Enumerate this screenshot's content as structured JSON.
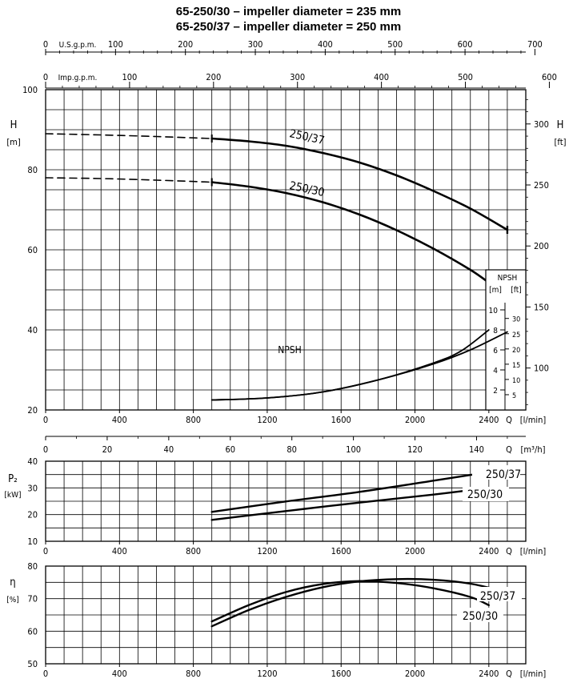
{
  "titles": {
    "line1": "65-250/30 – impeller diameter = 235 mm",
    "line2": "65-250/37 – impeller diameter = 250 mm"
  },
  "chart_data": [
    {
      "type": "line",
      "name": "head-curve",
      "ylabel": "H",
      "yunit": "[m]",
      "ylabel_right": "H",
      "yunit_right": "[ft]",
      "xlabel": "Q",
      "xunit": "[l/min]",
      "xlim": [
        0,
        2600
      ],
      "ylim": [
        20,
        100
      ],
      "xticks": [
        0,
        400,
        800,
        1200,
        1600,
        2000,
        2400
      ],
      "yticks": [
        20,
        40,
        60,
        80,
        100
      ],
      "ft_ticks": [
        100,
        150,
        200,
        250,
        300
      ],
      "usgpm_label": "U.S.g.p.m.",
      "usgpm_ticks": [
        0,
        100,
        200,
        300,
        400,
        500,
        600,
        700
      ],
      "impgpm_label": "Imp.g.p.m.",
      "impgpm_ticks": [
        0,
        100,
        200,
        300,
        400,
        500,
        600
      ],
      "m3h_label": "Q",
      "m3h_unit": "[m³/h]",
      "m3h_ticks": [
        0,
        20,
        40,
        60,
        80,
        100,
        120,
        140
      ],
      "grid": true,
      "series": [
        {
          "name": "250/37",
          "dashed": [
            [
              0,
              89
            ],
            [
              300,
              88.7
            ],
            [
              600,
              88.3
            ],
            [
              900,
              87.8
            ]
          ],
          "solid": [
            [
              900,
              87.8
            ],
            [
              1100,
              87.1
            ],
            [
              1300,
              86.0
            ],
            [
              1500,
              84.2
            ],
            [
              1700,
              81.8
            ],
            [
              1900,
              78.6
            ],
            [
              2100,
              74.7
            ],
            [
              2300,
              70.3
            ],
            [
              2500,
              65.0
            ]
          ],
          "label_at": [
            1290,
            86.5
          ]
        },
        {
          "name": "250/30",
          "dashed": [
            [
              0,
              78
            ],
            [
              300,
              77.8
            ],
            [
              600,
              77.4
            ],
            [
              900,
              76.9
            ]
          ],
          "solid": [
            [
              900,
              76.9
            ],
            [
              1100,
              75.8
            ],
            [
              1300,
              74.2
            ],
            [
              1500,
              71.9
            ],
            [
              1700,
              68.8
            ],
            [
              1900,
              64.9
            ],
            [
              2100,
              60.3
            ],
            [
              2300,
              55.0
            ],
            [
              2400,
              51.8
            ]
          ],
          "label_at": [
            1290,
            73.5
          ]
        }
      ]
    },
    {
      "type": "line",
      "name": "npsh-curve",
      "label": "NPSH",
      "box_title": "NPSH",
      "unit_m": "[m]",
      "unit_ft": "[ft]",
      "m_ticks": [
        2,
        4,
        6,
        8,
        10
      ],
      "ft_ticks": [
        5,
        10,
        15,
        20,
        25,
        30
      ],
      "series": [
        {
          "name": "250/37",
          "values": [
            [
              900,
              1.0
            ],
            [
              1200,
              1.2
            ],
            [
              1500,
              1.8
            ],
            [
              1800,
              3.0
            ],
            [
              2100,
              4.6
            ],
            [
              2300,
              6.0
            ],
            [
              2500,
              7.8
            ]
          ]
        },
        {
          "name": "250/30",
          "values": [
            [
              900,
              1.0
            ],
            [
              1200,
              1.2
            ],
            [
              1500,
              1.8
            ],
            [
              1800,
              3.0
            ],
            [
              2100,
              4.7
            ],
            [
              2250,
              5.9
            ],
            [
              2400,
              8.0
            ]
          ]
        }
      ]
    },
    {
      "type": "line",
      "name": "power-curve",
      "ylabel": "P₂",
      "yunit": "[kW]",
      "xlabel": "Q",
      "xunit": "[l/min]",
      "xlim": [
        0,
        2600
      ],
      "ylim": [
        10,
        40
      ],
      "yticks": [
        10,
        20,
        30,
        40
      ],
      "xticks": [
        0,
        400,
        800,
        1200,
        1600,
        2000,
        2400
      ],
      "series": [
        {
          "name": "250/37",
          "values": [
            [
              900,
              21
            ],
            [
              1300,
              24.9
            ],
            [
              1700,
              28.5
            ],
            [
              2100,
              32.7
            ],
            [
              2500,
              37
            ]
          ]
        },
        {
          "name": "250/30",
          "values": [
            [
              900,
              18
            ],
            [
              1300,
              21.3
            ],
            [
              1700,
              24.5
            ],
            [
              2100,
              27.5
            ],
            [
              2400,
              30
            ]
          ]
        }
      ]
    },
    {
      "type": "line",
      "name": "efficiency-curve",
      "ylabel": "η",
      "yunit": "[%]",
      "xlabel": "Q",
      "xunit": "[l/min]",
      "xlim": [
        0,
        2600
      ],
      "ylim": [
        50,
        80
      ],
      "yticks": [
        50,
        60,
        70,
        80
      ],
      "xticks": [
        0,
        400,
        800,
        1200,
        1600,
        2000,
        2400
      ],
      "series": [
        {
          "name": "250/37",
          "values": [
            [
              900,
              61.5
            ],
            [
              1100,
              66.5
            ],
            [
              1300,
              70.5
            ],
            [
              1500,
              73.5
            ],
            [
              1700,
              75.3
            ],
            [
              1900,
              76.0
            ],
            [
              2100,
              75.8
            ],
            [
              2300,
              74.6
            ],
            [
              2500,
              72.0
            ]
          ]
        },
        {
          "name": "250/30",
          "values": [
            [
              900,
              63
            ],
            [
              1100,
              68
            ],
            [
              1300,
              72
            ],
            [
              1500,
              74.5
            ],
            [
              1700,
              75.4
            ],
            [
              1900,
              74.8
            ],
            [
              2100,
              73.2
            ],
            [
              2300,
              70.5
            ],
            [
              2400,
              68
            ]
          ]
        }
      ]
    }
  ]
}
